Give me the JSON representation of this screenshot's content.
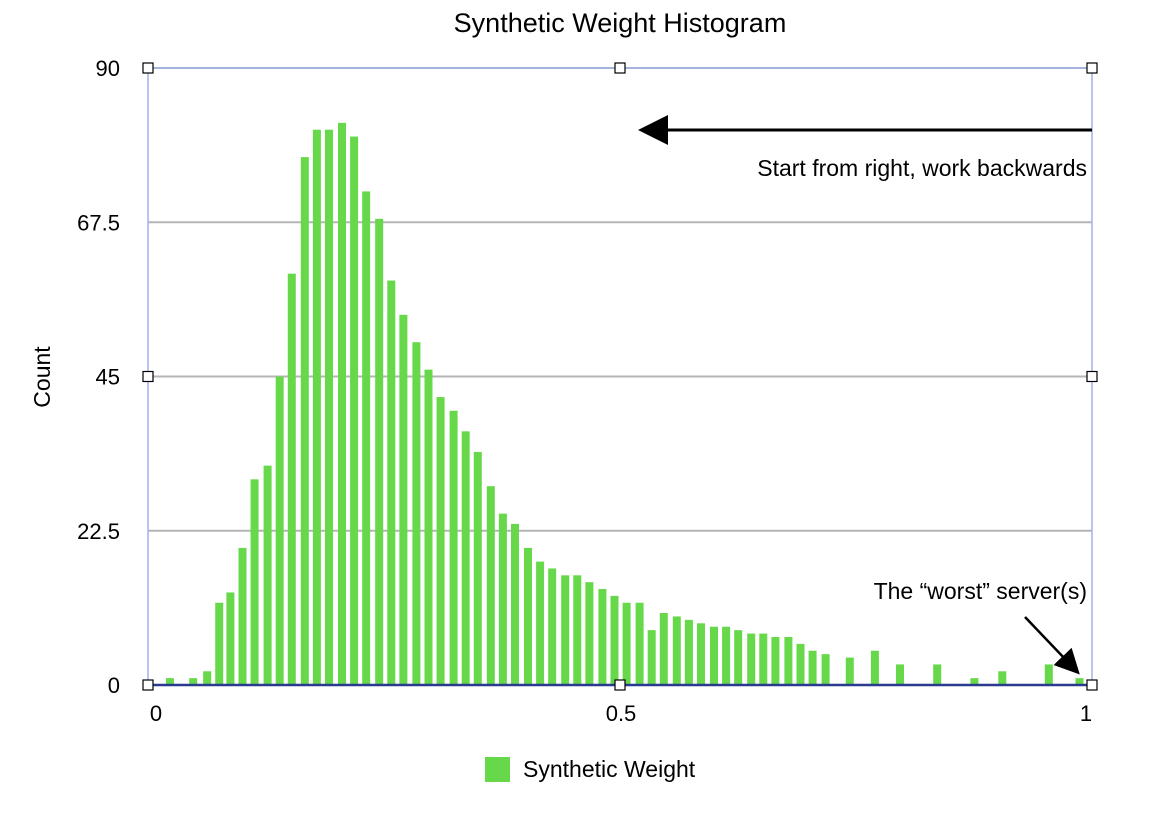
{
  "chart_data": {
    "type": "bar",
    "title": "Synthetic Weight Histogram",
    "xlabel": "",
    "ylabel": "Count",
    "xlim": [
      0,
      1
    ],
    "ylim": [
      0,
      90
    ],
    "x_ticks": [
      "0",
      "0.5",
      "1"
    ],
    "y_ticks": [
      "0",
      "22.5",
      "45",
      "67.5",
      "90"
    ],
    "grid": true,
    "legend_position": "bottom-center",
    "bar_color": "#66d84a",
    "series": [
      {
        "name": "Synthetic Weight",
        "x": [
          0.015,
          0.04,
          0.055,
          0.068,
          0.08,
          0.093,
          0.106,
          0.12,
          0.133,
          0.146,
          0.16,
          0.173,
          0.186,
          0.2,
          0.213,
          0.226,
          0.24,
          0.253,
          0.266,
          0.28,
          0.293,
          0.306,
          0.32,
          0.333,
          0.346,
          0.36,
          0.373,
          0.386,
          0.4,
          0.413,
          0.426,
          0.44,
          0.453,
          0.466,
          0.48,
          0.493,
          0.506,
          0.52,
          0.533,
          0.546,
          0.56,
          0.573,
          0.586,
          0.6,
          0.613,
          0.626,
          0.64,
          0.653,
          0.666,
          0.68,
          0.693,
          0.706,
          0.72,
          0.746,
          0.773,
          0.8,
          0.84,
          0.88,
          0.91,
          0.96,
          0.993
        ],
        "y": [
          1,
          1,
          2,
          12,
          13.5,
          20,
          30,
          32,
          45,
          60,
          77,
          81,
          81,
          82,
          80,
          72,
          68,
          59,
          54,
          50,
          46,
          42,
          40,
          37,
          34,
          29,
          25,
          23.5,
          20,
          18,
          17,
          16,
          16,
          15,
          14,
          13,
          12,
          12,
          8,
          10.5,
          10,
          9.5,
          9,
          8.5,
          8.5,
          8,
          7.5,
          7.5,
          7,
          7,
          6,
          5,
          4.5,
          4,
          5,
          3,
          3,
          1,
          2,
          3,
          1
        ]
      }
    ],
    "annotations": [
      {
        "text": "Start from right, work backwards",
        "arrow": "right-to-left"
      },
      {
        "text": "The “worst” server(s)",
        "arrow": "down-right"
      }
    ]
  },
  "colors": {
    "bar": "#66d84a",
    "gridline": "#b5b5b5",
    "plot_border": "#9db4ee",
    "baseline": "#2a3a8f",
    "arrow": "#000000"
  }
}
